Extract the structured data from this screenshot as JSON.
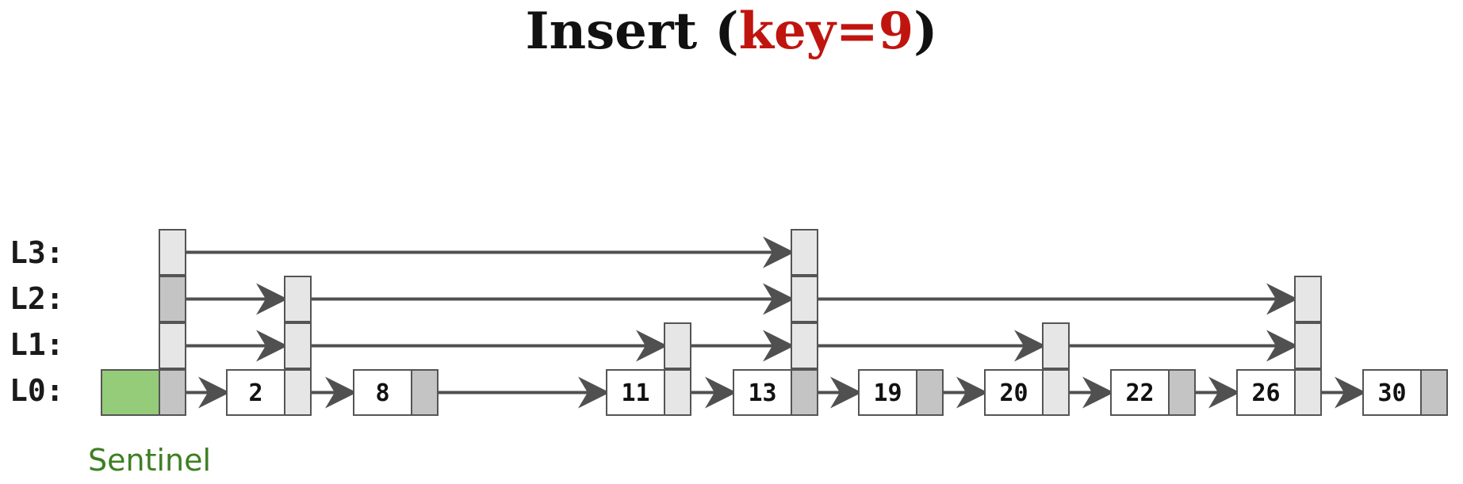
{
  "title": {
    "prefix": "Insert (",
    "highlight": "key=9",
    "suffix": ")"
  },
  "colors": {
    "highlight": "#c0150f",
    "sentinel_fill": "#95cc79",
    "sentinel_label": "#3e7f22",
    "arrow": "#505050",
    "dark_pointer": "#333333",
    "darker_pointer": "#1d1d1d",
    "light_pointer": "#e6e6e6",
    "mid_pointer": "#c4c4c4"
  },
  "levels": [
    "L3:",
    "L2:",
    "L1:",
    "L0:"
  ],
  "sentinel_label": "Sentinel",
  "keys": [
    "2",
    "8",
    "11",
    "13",
    "19",
    "20",
    "22",
    "26",
    "30"
  ]
}
